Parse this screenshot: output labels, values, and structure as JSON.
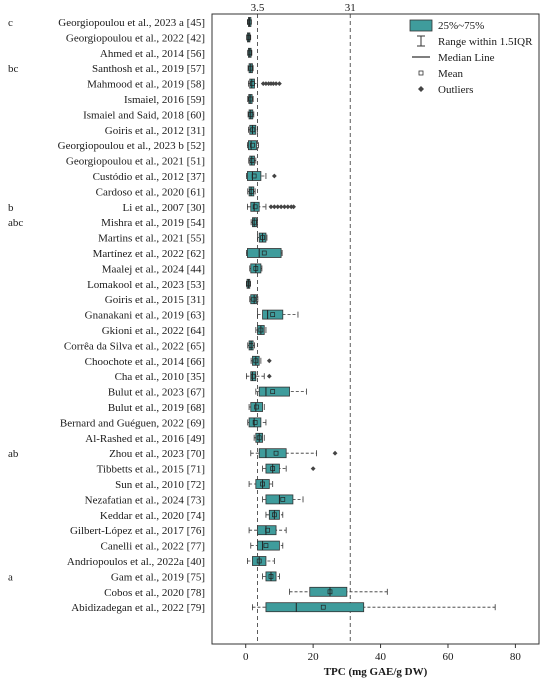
{
  "chart_data": {
    "type": "box",
    "xlabel": "TPC (mg GAE/g DW)",
    "xlim": [
      -10,
      87
    ],
    "xticks": [
      0,
      20,
      40,
      60,
      80
    ],
    "reference_lines": [
      {
        "value": 3.5,
        "label": "3.5"
      },
      {
        "value": 31,
        "label": "31"
      }
    ],
    "legend": {
      "placement": "top-right",
      "color": "#3f9c9c",
      "entries": {
        "box": "25%~75%",
        "whisker": "Range within 1.5IQR",
        "median": "Median Line",
        "mean": "Mean",
        "outlier": "Outliers"
      }
    },
    "studies": [
      {
        "label": "Georgiopoulou et al., 2023 a [45]",
        "group": "c",
        "q1": 0.8,
        "median": 1.1,
        "q3": 1.4,
        "mean": 1.1,
        "min": 0.6,
        "max": 1.6,
        "outliers": []
      },
      {
        "label": "Georgiopoulou et al., 2022 [42]",
        "group": "",
        "q1": 0.5,
        "median": 0.9,
        "q3": 1.2,
        "mean": 0.9,
        "min": 0.3,
        "max": 1.4,
        "outliers": []
      },
      {
        "label": "Ahmed et al., 2014 [56]",
        "group": "",
        "q1": 0.8,
        "median": 1.2,
        "q3": 1.6,
        "mean": 1.2,
        "min": 0.6,
        "max": 1.8,
        "outliers": []
      },
      {
        "label": "Santhosh et al., 2019 [57]",
        "group": "bc",
        "q1": 1.0,
        "median": 1.5,
        "q3": 2.0,
        "mean": 1.5,
        "min": 0.7,
        "max": 2.2,
        "outliers": []
      },
      {
        "label": "Mahmood et al., 2019 [58]",
        "group": "",
        "q1": 1.2,
        "median": 1.8,
        "q3": 2.6,
        "mean": 2.0,
        "min": 0.8,
        "max": 3.5,
        "outliers": [
          5.2,
          6.0,
          6.8,
          7.5,
          8.2,
          9.0,
          10.0
        ]
      },
      {
        "label": "Ismaiel, 2016 [59]",
        "group": "",
        "q1": 0.9,
        "median": 1.3,
        "q3": 1.9,
        "mean": 1.4,
        "min": 0.6,
        "max": 2.2,
        "outliers": []
      },
      {
        "label": "Ismaiel and Said, 2018 [60]",
        "group": "",
        "q1": 1.0,
        "median": 1.5,
        "q3": 2.1,
        "mean": 1.5,
        "min": 0.7,
        "max": 2.4,
        "outliers": []
      },
      {
        "label": "Goiris et al., 2012 [31]",
        "group": "",
        "q1": 1.2,
        "median": 2.0,
        "q3": 3.0,
        "mean": 2.1,
        "min": 0.8,
        "max": 3.5,
        "outliers": []
      },
      {
        "label": "Georgiopoulou et al., 2023 b [52]",
        "group": "",
        "q1": 0.8,
        "median": 1.6,
        "q3": 3.2,
        "mean": 2.0,
        "min": 0.5,
        "max": 3.8,
        "outliers": []
      },
      {
        "label": "Georgiopoulou et al., 2021 [51]",
        "group": "",
        "q1": 1.2,
        "median": 1.8,
        "q3": 2.6,
        "mean": 1.9,
        "min": 0.9,
        "max": 3.0,
        "outliers": []
      },
      {
        "label": "Custódio et al., 2012 [37]",
        "group": "",
        "q1": 0.5,
        "median": 2.0,
        "q3": 4.5,
        "mean": 2.5,
        "min": 0.2,
        "max": 6.0,
        "outliers": [
          8.5
        ]
      },
      {
        "label": "Cardoso et al., 2020 [61]",
        "group": "",
        "q1": 1.0,
        "median": 1.6,
        "q3": 2.4,
        "mean": 1.7,
        "min": 0.6,
        "max": 2.8,
        "outliers": []
      },
      {
        "label": "Li et al., 2007 [30]",
        "group": "b",
        "q1": 1.5,
        "median": 2.5,
        "q3": 4.0,
        "mean": 2.8,
        "min": 0.5,
        "max": 6.0,
        "outliers": [
          7.5,
          8.5,
          9.5,
          10.5,
          11.5,
          12.5,
          13.5,
          14.2
        ]
      },
      {
        "label": "Mishra et al., 2019 [54]",
        "group": "abc",
        "q1": 2.0,
        "median": 2.5,
        "q3": 3.2,
        "mean": 2.6,
        "min": 1.6,
        "max": 3.5,
        "outliers": []
      },
      {
        "label": "Martins et al., 2021 [55]",
        "group": "",
        "q1": 4.0,
        "median": 5.0,
        "q3": 6.0,
        "mean": 5.0,
        "min": 3.5,
        "max": 6.3,
        "outliers": []
      },
      {
        "label": "Martínez et al., 2022 [62]",
        "group": "",
        "q1": 0.5,
        "median": 4.0,
        "q3": 10.5,
        "mean": 5.5,
        "min": 0.2,
        "max": 10.8,
        "outliers": []
      },
      {
        "label": "Maalej et al., 2024 [44]",
        "group": "",
        "q1": 1.5,
        "median": 3.0,
        "q3": 4.5,
        "mean": 3.0,
        "min": 1.2,
        "max": 4.8,
        "outliers": []
      },
      {
        "label": "Lomakool et al., 2023 [53]",
        "group": "",
        "q1": 0.4,
        "median": 0.8,
        "q3": 1.2,
        "mean": 0.8,
        "min": 0.2,
        "max": 1.4,
        "outliers": []
      },
      {
        "label": "Goiris et al., 2015 [31]",
        "group": "",
        "q1": 1.5,
        "median": 2.5,
        "q3": 3.2,
        "mean": 2.4,
        "min": 1.2,
        "max": 3.6,
        "outliers": []
      },
      {
        "label": "Gnanakani et al., 2019 [63]",
        "group": "",
        "q1": 5.0,
        "median": 6.5,
        "q3": 11.0,
        "mean": 8.0,
        "min": 3.5,
        "max": 15.5,
        "outliers": []
      },
      {
        "label": "Gkioni et al., 2022 [64]",
        "group": "",
        "q1": 3.5,
        "median": 4.5,
        "q3": 5.5,
        "mean": 4.5,
        "min": 3.0,
        "max": 6.0,
        "outliers": []
      },
      {
        "label": "Corrêa da Silva et al., 2022 [65]",
        "group": "",
        "q1": 1.0,
        "median": 1.6,
        "q3": 2.2,
        "mean": 1.6,
        "min": 0.6,
        "max": 2.6,
        "outliers": []
      },
      {
        "label": "Choochote et al., 2014 [66]",
        "group": "",
        "q1": 2.0,
        "median": 3.0,
        "q3": 4.0,
        "mean": 3.0,
        "min": 1.6,
        "max": 4.5,
        "outliers": [
          7.0
        ]
      },
      {
        "label": "Cha et al., 2010 [35]",
        "group": "",
        "q1": 1.5,
        "median": 2.0,
        "q3": 3.0,
        "mean": 2.2,
        "min": 0.2,
        "max": 5.5,
        "outliers": [
          7.0
        ]
      },
      {
        "label": "Bulut et al., 2023 [67]",
        "group": "",
        "q1": 4.0,
        "median": 6.0,
        "q3": 13.0,
        "mean": 8.0,
        "min": 3.0,
        "max": 18.0,
        "outliers": []
      },
      {
        "label": "Bulut et al., 2019 [68]",
        "group": "",
        "q1": 1.5,
        "median": 3.0,
        "q3": 5.0,
        "mean": 3.2,
        "min": 1.0,
        "max": 5.5,
        "outliers": []
      },
      {
        "label": "Bernard and Guéguen, 2022 [69]",
        "group": "",
        "q1": 1.0,
        "median": 2.5,
        "q3": 4.5,
        "mean": 2.8,
        "min": 0.6,
        "max": 6.0,
        "outliers": []
      },
      {
        "label": "Al-Rashed et al., 2016 [49]",
        "group": "",
        "q1": 3.0,
        "median": 4.0,
        "q3": 5.0,
        "mean": 4.0,
        "min": 2.5,
        "max": 5.5,
        "outliers": []
      },
      {
        "label": "Zhou et al., 2023 [70]",
        "group": "ab",
        "q1": 4.0,
        "median": 6.0,
        "q3": 12.0,
        "mean": 9.0,
        "min": 1.5,
        "max": 21.0,
        "outliers": [
          26.5
        ]
      },
      {
        "label": "Tibbetts et al., 2015 [71]",
        "group": "",
        "q1": 6.0,
        "median": 8.0,
        "q3": 10.0,
        "mean": 8.0,
        "min": 5.0,
        "max": 12.0,
        "outliers": [
          20.0
        ]
      },
      {
        "label": "Sun et al., 2010 [72]",
        "group": "",
        "q1": 3.0,
        "median": 5.0,
        "q3": 7.0,
        "mean": 5.0,
        "min": 1.0,
        "max": 8.0,
        "outliers": []
      },
      {
        "label": "Nezafatian et al., 2024 [73]",
        "group": "",
        "q1": 6.0,
        "median": 10.0,
        "q3": 14.0,
        "mean": 11.0,
        "min": 5.0,
        "max": 17.0,
        "outliers": []
      },
      {
        "label": "Keddar et al., 2020 [74]",
        "group": "",
        "q1": 7.0,
        "median": 8.5,
        "q3": 10.0,
        "mean": 8.5,
        "min": 6.0,
        "max": 11.0,
        "outliers": []
      },
      {
        "label": "Gilbert-López et al., 2017 [76]",
        "group": "",
        "q1": 3.5,
        "median": 6.0,
        "q3": 9.0,
        "mean": 6.5,
        "min": 1.0,
        "max": 12.0,
        "outliers": []
      },
      {
        "label": "Canelli et al., 2022 [77]",
        "group": "",
        "q1": 3.5,
        "median": 5.0,
        "q3": 10.0,
        "mean": 6.0,
        "min": 1.5,
        "max": 11.0,
        "outliers": []
      },
      {
        "label": "Andriopoulos et al., 2022a [40]",
        "group": "",
        "q1": 2.0,
        "median": 4.0,
        "q3": 6.0,
        "mean": 4.0,
        "min": 0.5,
        "max": 8.5,
        "outliers": []
      },
      {
        "label": "Gam et al., 2019 [75]",
        "group": "a",
        "q1": 6.0,
        "median": 7.5,
        "q3": 9.0,
        "mean": 7.5,
        "min": 5.0,
        "max": 10.0,
        "outliers": []
      },
      {
        "label": "Cobos et al., 2020 [78]",
        "group": "",
        "q1": 19.0,
        "median": 25.0,
        "q3": 30.0,
        "mean": 25.0,
        "min": 13.0,
        "max": 42.0,
        "outliers": []
      },
      {
        "label": "Abidizadegan et al., 2022 [79]",
        "group": "",
        "q1": 6.0,
        "median": 15.0,
        "q3": 35.0,
        "mean": 23.0,
        "min": 2.0,
        "max": 74.0,
        "outliers": []
      }
    ]
  }
}
